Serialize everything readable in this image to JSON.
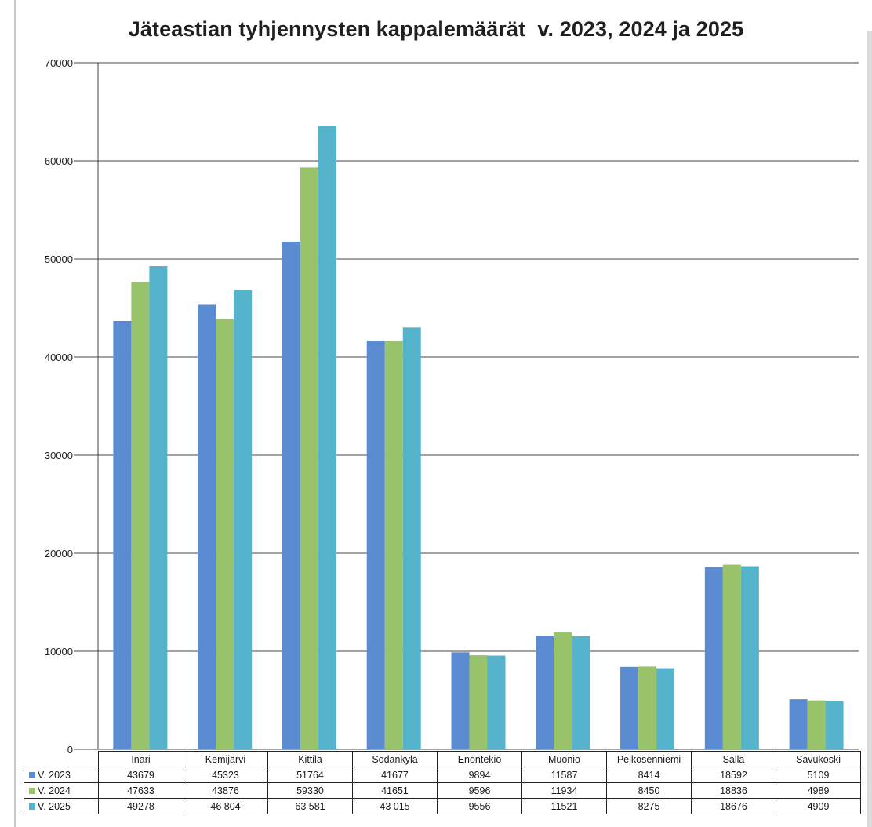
{
  "chart_data": {
    "type": "bar",
    "title": "Jäteastian tyhjennysten kappalemäärät  v. 2023, 2024 ja 2025",
    "categories": [
      "Inari",
      "Kemijärvi",
      "Kittilä",
      "Sodankylä",
      "Enontekiö",
      "Muonio",
      "Pelkosenniemi",
      "Salla",
      "Savukoski"
    ],
    "series": [
      {
        "name": "V. 2023",
        "color": "#5b8bd0",
        "values": [
          43679,
          45323,
          51764,
          41677,
          9894,
          11587,
          8414,
          18592,
          5109
        ],
        "labels": [
          "43679",
          "45323",
          "51764",
          "41677",
          "9894",
          "11587",
          "8414",
          "18592",
          "5109"
        ]
      },
      {
        "name": "V. 2024",
        "color": "#98c36a",
        "values": [
          47633,
          43876,
          59330,
          41651,
          9596,
          11934,
          8450,
          18836,
          4989
        ],
        "labels": [
          "47633",
          "43876",
          "59330",
          "41651",
          "9596",
          "11934",
          "8450",
          "18836",
          "4989"
        ]
      },
      {
        "name": "V. 2025",
        "color": "#55b3cc",
        "values": [
          49278,
          46804,
          63581,
          43015,
          9556,
          11521,
          8275,
          18676,
          4909
        ],
        "labels": [
          "49278",
          "46 804",
          "63 581",
          "43 015",
          "9556",
          "11521",
          "8275",
          "18676",
          "4909"
        ]
      }
    ],
    "ylim": [
      0,
      70000
    ],
    "yticks": [
      "0",
      "10000",
      "20000",
      "30000",
      "40000",
      "50000",
      "60000",
      "70000"
    ],
    "grid": true,
    "legend": "data-table"
  }
}
